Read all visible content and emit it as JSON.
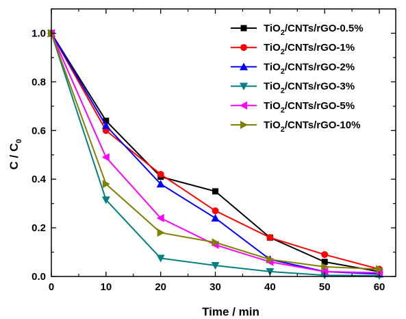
{
  "chart_data": {
    "type": "line",
    "xlabel": "Time / min",
    "ylabel_main": "C / C",
    "ylabel_sub": "0",
    "xlim": [
      0,
      63
    ],
    "ylim": [
      0,
      1.1
    ],
    "x_ticks": [
      0,
      10,
      20,
      30,
      40,
      50,
      60
    ],
    "y_ticks": [
      0.0,
      0.2,
      0.4,
      0.6,
      0.8,
      1.0
    ],
    "x_tick_labels": [
      "0",
      "10",
      "20",
      "30",
      "40",
      "50",
      "60"
    ],
    "y_tick_labels": [
      "0.0",
      "0.2",
      "0.4",
      "0.6",
      "0.8",
      "1.0"
    ],
    "legend_position": "top-right",
    "x": [
      0,
      10,
      20,
      30,
      40,
      50,
      60
    ],
    "series": [
      {
        "name_pre": "TiO",
        "name_sub": "2",
        "name_post": "/CNTs/rGO-0.5%",
        "color": "#000000",
        "marker": "square",
        "values": [
          1.0,
          0.64,
          0.41,
          0.35,
          0.16,
          0.06,
          0.02
        ]
      },
      {
        "name_pre": "TiO",
        "name_sub": "2",
        "name_post": "/CNTs/rGO-1%",
        "color": "#ff0000",
        "marker": "circle",
        "values": [
          1.0,
          0.6,
          0.42,
          0.27,
          0.16,
          0.09,
          0.03
        ]
      },
      {
        "name_pre": "TiO",
        "name_sub": "2",
        "name_post": "/CNTs/rGO-2%",
        "color": "#0000ff",
        "marker": "triangle-up",
        "values": [
          1.0,
          0.62,
          0.38,
          0.24,
          0.07,
          0.02,
          0.01
        ]
      },
      {
        "name_pre": "TiO",
        "name_sub": "2",
        "name_post": "/CNTs/rGO-3%",
        "color": "#008080",
        "marker": "triangle-down",
        "values": [
          1.0,
          0.315,
          0.075,
          0.045,
          0.02,
          0.005,
          0.003
        ]
      },
      {
        "name_pre": "TiO",
        "name_sub": "2",
        "name_post": "/CNTs/rGO-5%",
        "color": "#ff00ff",
        "marker": "triangle-left",
        "values": [
          1.0,
          0.49,
          0.24,
          0.13,
          0.06,
          0.02,
          0.015
        ]
      },
      {
        "name_pre": "TiO",
        "name_sub": "2",
        "name_post": "/CNTs/rGO-10%",
        "color": "#808000",
        "marker": "triangle-right",
        "values": [
          1.0,
          0.38,
          0.18,
          0.14,
          0.07,
          0.04,
          0.03
        ]
      }
    ]
  }
}
